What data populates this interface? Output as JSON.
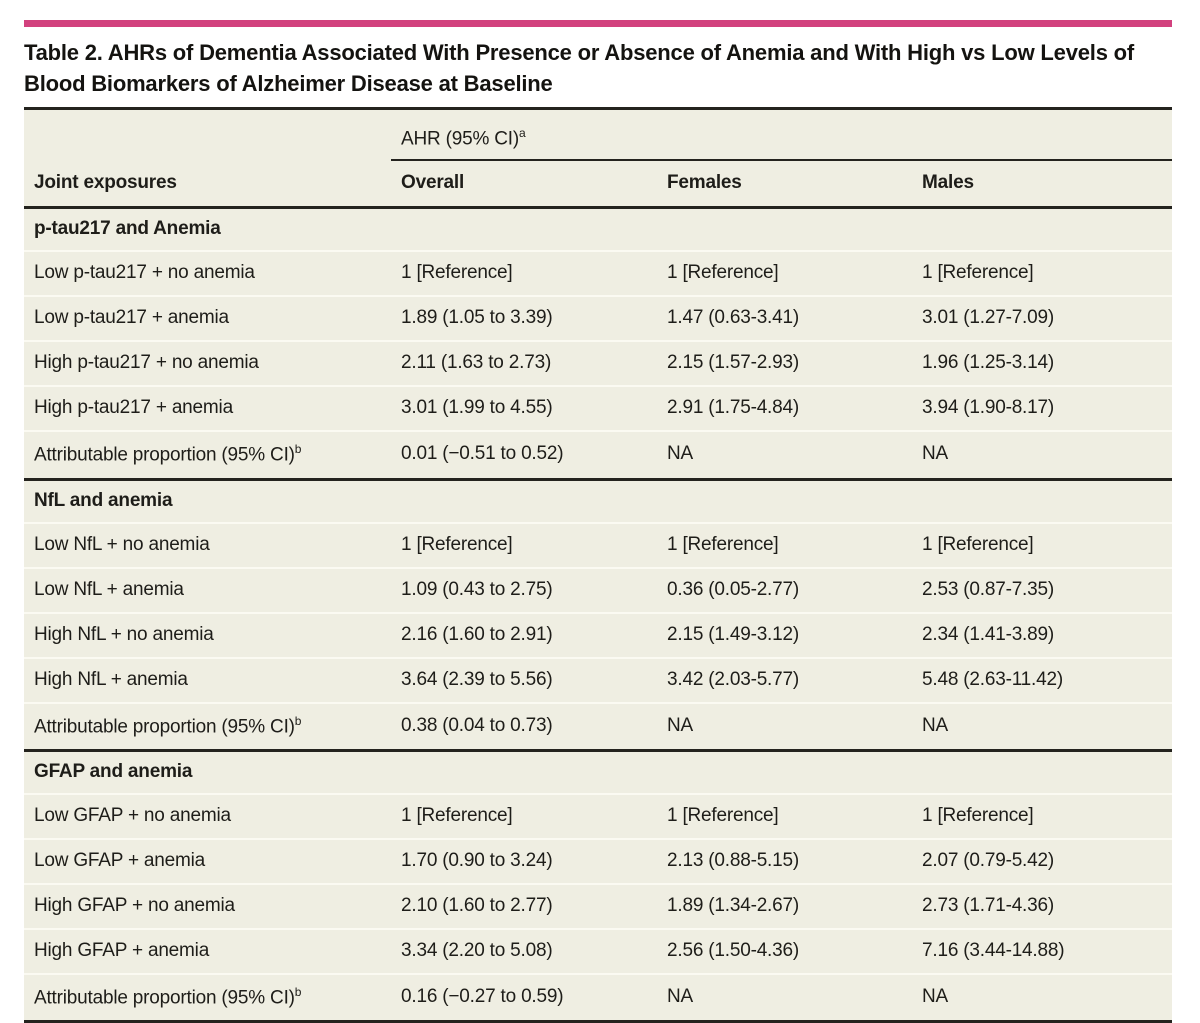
{
  "accent_color": "#d2417e",
  "table_background": "#efeee2",
  "rule_color": "#24231e",
  "title": "Table 2. AHRs of Dementia Associated With Presence or Absence of Anemia and With High vs Low Levels of Blood Biomarkers of Alzheimer Disease at Baseline",
  "table": {
    "span_header": {
      "label": "AHR (95% CI)",
      "sup": "a"
    },
    "columns": [
      "Joint exposures",
      "Overall",
      "Females",
      "Males"
    ],
    "sections": [
      {
        "header": "p-tau217 and Anemia",
        "rows": [
          {
            "label": "Low p-tau217 + no anemia",
            "cells": [
              "1 [Reference]",
              "1 [Reference]",
              "1 [Reference]"
            ]
          },
          {
            "label": "Low p-tau217 + anemia",
            "cells": [
              "1.89 (1.05 to 3.39)",
              "1.47 (0.63-3.41)",
              "3.01 (1.27-7.09)"
            ]
          },
          {
            "label": "High p-tau217 + no anemia",
            "cells": [
              "2.11 (1.63 to 2.73)",
              "2.15 (1.57-2.93)",
              "1.96 (1.25-3.14)"
            ]
          },
          {
            "label": "High p-tau217 + anemia",
            "cells": [
              "3.01 (1.99 to 4.55)",
              "2.91 (1.75-4.84)",
              "3.94 (1.90-8.17)"
            ]
          },
          {
            "label": "Attributable proportion (95% CI)",
            "sup": "b",
            "cells": [
              "0.01 (−0.51 to 0.52)",
              "NA",
              "NA"
            ]
          }
        ]
      },
      {
        "header": "NfL and anemia",
        "rows": [
          {
            "label": "Low NfL + no anemia",
            "cells": [
              "1 [Reference]",
              "1 [Reference]",
              "1 [Reference]"
            ]
          },
          {
            "label": "Low NfL + anemia",
            "cells": [
              "1.09 (0.43 to 2.75)",
              "0.36 (0.05-2.77)",
              "2.53 (0.87-7.35)"
            ]
          },
          {
            "label": "High NfL + no anemia",
            "cells": [
              "2.16 (1.60 to 2.91)",
              "2.15 (1.49-3.12)",
              "2.34 (1.41-3.89)"
            ]
          },
          {
            "label": "High NfL + anemia",
            "cells": [
              "3.64 (2.39 to 5.56)",
              "3.42 (2.03-5.77)",
              "5.48 (2.63-11.42)"
            ]
          },
          {
            "label": "Attributable proportion (95% CI)",
            "sup": "b",
            "cells": [
              "0.38 (0.04 to 0.73)",
              "NA",
              "NA"
            ]
          }
        ]
      },
      {
        "header": "GFAP and anemia",
        "rows": [
          {
            "label": "Low GFAP + no anemia",
            "cells": [
              "1 [Reference]",
              "1 [Reference]",
              "1 [Reference]"
            ]
          },
          {
            "label": "Low GFAP + anemia",
            "cells": [
              "1.70 (0.90 to 3.24)",
              "2.13 (0.88-5.15)",
              "2.07 (0.79-5.42)"
            ]
          },
          {
            "label": "High GFAP + no anemia",
            "cells": [
              "2.10 (1.60 to 2.77)",
              "1.89 (1.34-2.67)",
              "2.73 (1.71-4.36)"
            ]
          },
          {
            "label": "High GFAP + anemia",
            "cells": [
              "3.34 (2.20 to 5.08)",
              "2.56 (1.50-4.36)",
              "7.16 (3.44-14.88)"
            ]
          },
          {
            "label": "Attributable proportion (95% CI)",
            "sup": "b",
            "cells": [
              "0.16 (−0.27 to 0.59)",
              "NA",
              "NA"
            ]
          }
        ]
      }
    ]
  }
}
